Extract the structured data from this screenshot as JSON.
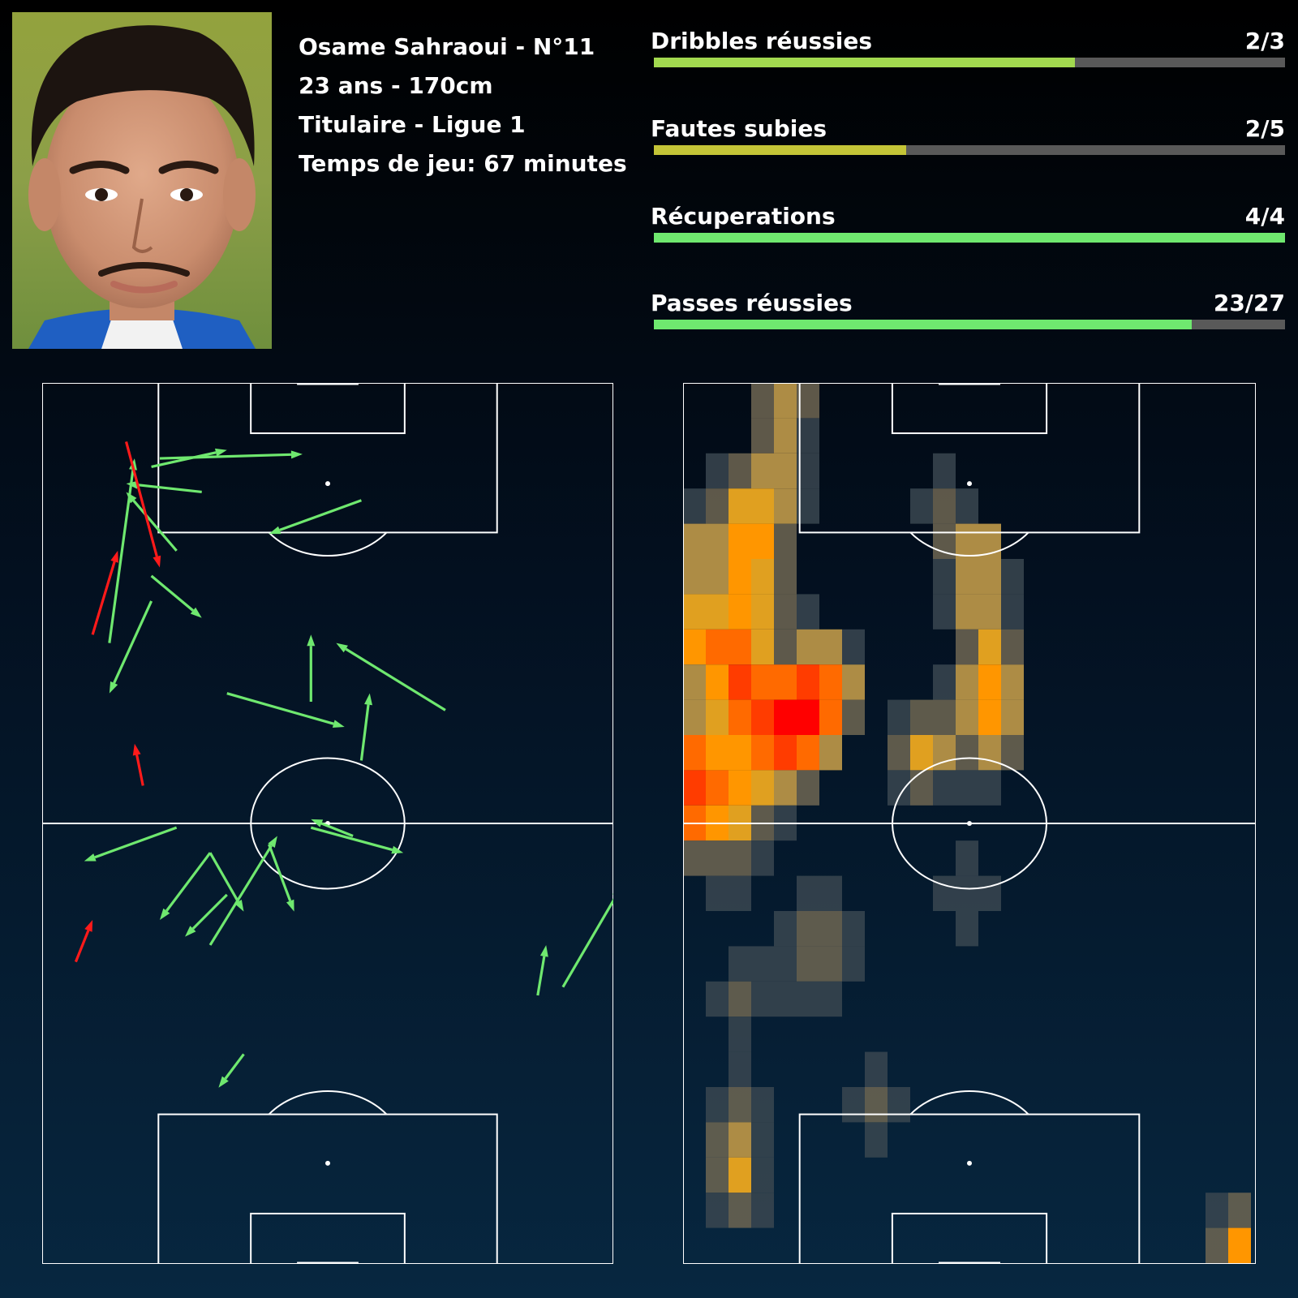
{
  "player": {
    "photo_alt": "player-photo",
    "lines": [
      "Osame Sahraoui - N°11",
      "23 ans - 170cm",
      "Titulaire - Ligue 1",
      "Temps de jeu: 67 minutes"
    ]
  },
  "stats": [
    {
      "label": "Dribbles réussies",
      "value": "2/3",
      "success": 2,
      "total": 3,
      "color": "#a2d94f"
    },
    {
      "label": "Fautes subies",
      "value": "2/5",
      "success": 2,
      "total": 5,
      "color": "#c4c437"
    },
    {
      "label": "Récuperations",
      "value": "4/4",
      "success": 4,
      "total": 4,
      "color": "#6fe86f"
    },
    {
      "label": "Passes réussies",
      "value": "23/27",
      "success": 23,
      "total": 27,
      "color": "#6fe86f"
    }
  ],
  "colors": {
    "pass_success": "#6fe86f",
    "pass_fail": "#ff1a1a",
    "pitch_line": "#ffffff"
  },
  "passes": [
    {
      "from": [
        14,
        9
      ],
      "to": [
        31,
        8.5
      ],
      "ok": true
    },
    {
      "from": [
        20,
        67
      ],
      "to": [
        28,
        54
      ],
      "ok": true
    },
    {
      "from": [
        62,
        72
      ],
      "to": [
        69,
        60
      ],
      "ok": true
    },
    {
      "from": [
        24,
        80
      ],
      "to": [
        21,
        84
      ],
      "ok": true
    },
    {
      "from": [
        38,
        14
      ],
      "to": [
        27,
        18
      ],
      "ok": true
    },
    {
      "from": [
        13,
        23
      ],
      "to": [
        19,
        28
      ],
      "ok": true
    },
    {
      "from": [
        22,
        37
      ],
      "to": [
        36,
        41
      ],
      "ok": true
    },
    {
      "from": [
        8,
        31
      ],
      "to": [
        11,
        9
      ],
      "ok": true
    },
    {
      "from": [
        13,
        26
      ],
      "to": [
        8,
        37
      ],
      "ok": true
    },
    {
      "from": [
        48,
        39
      ],
      "to": [
        35,
        31
      ],
      "ok": true
    },
    {
      "from": [
        38,
        45
      ],
      "to": [
        39,
        37
      ],
      "ok": true
    },
    {
      "from": [
        32,
        53
      ],
      "to": [
        43,
        56
      ],
      "ok": true
    },
    {
      "from": [
        37,
        54
      ],
      "to": [
        32,
        52
      ],
      "ok": true
    },
    {
      "from": [
        32,
        38
      ],
      "to": [
        32,
        30
      ],
      "ok": true
    },
    {
      "from": [
        16,
        53
      ],
      "to": [
        5,
        57
      ],
      "ok": true
    },
    {
      "from": [
        27,
        55
      ],
      "to": [
        30,
        63
      ],
      "ok": true
    },
    {
      "from": [
        20,
        56
      ],
      "to": [
        24,
        63
      ],
      "ok": true
    },
    {
      "from": [
        20,
        56
      ],
      "to": [
        14,
        64
      ],
      "ok": true
    },
    {
      "from": [
        22,
        61
      ],
      "to": [
        17,
        66
      ],
      "ok": true
    },
    {
      "from": [
        59,
        73
      ],
      "to": [
        60,
        67
      ],
      "ok": true
    },
    {
      "from": [
        13,
        10
      ],
      "to": [
        22,
        8
      ],
      "ok": true
    },
    {
      "from": [
        16,
        20
      ],
      "to": [
        10,
        13
      ],
      "ok": true
    },
    {
      "from": [
        19,
        13
      ],
      "to": [
        10,
        12
      ],
      "ok": true
    },
    {
      "from": [
        6,
        30
      ],
      "to": [
        9,
        20
      ],
      "ok": false
    },
    {
      "from": [
        12,
        48
      ],
      "to": [
        11,
        43
      ],
      "ok": false
    },
    {
      "from": [
        10,
        7
      ],
      "to": [
        14,
        22
      ],
      "ok": false
    },
    {
      "from": [
        4,
        69
      ],
      "to": [
        6,
        64
      ],
      "ok": false
    }
  ]
}
